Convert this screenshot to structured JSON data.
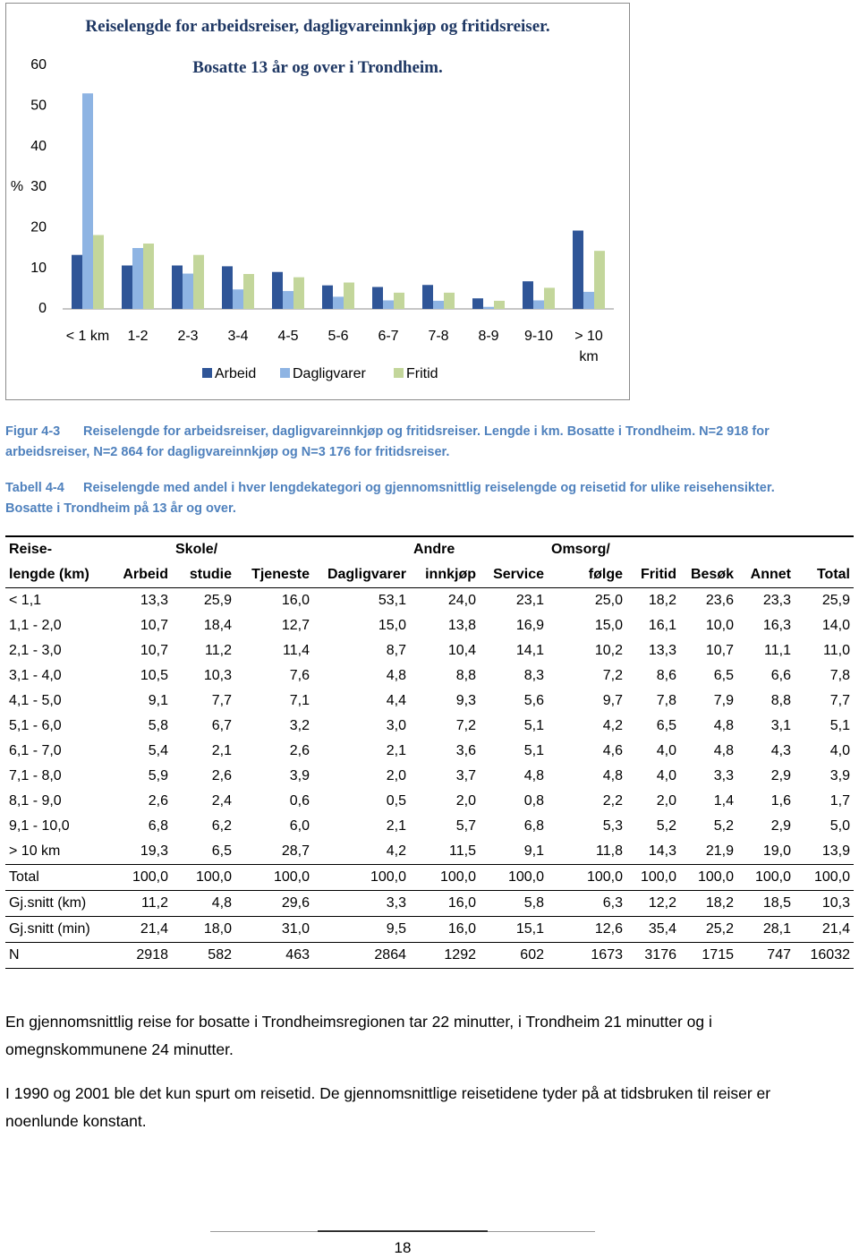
{
  "chart_data": {
    "type": "bar",
    "title": "Reiselengde for arbeidsreiser, dagligvareinnkjøp og fritidsreiser.",
    "subtitle": "Bosatte 13 år og over i Trondheim.",
    "y_label": "%",
    "categories": [
      "< 1 km",
      "1-2",
      "2-3",
      "3-4",
      "4-5",
      "5-6",
      "6-7",
      "7-8",
      "8-9",
      "9-10",
      "> 10 km"
    ],
    "series": [
      {
        "name": "Arbeid",
        "color": "#2f5597",
        "values": [
          13.3,
          10.7,
          10.7,
          10.5,
          9.1,
          5.8,
          5.4,
          5.9,
          2.6,
          6.8,
          19.3
        ]
      },
      {
        "name": "Dagligvarer",
        "color": "#8eb4e3",
        "values": [
          53.1,
          15.0,
          8.7,
          4.8,
          4.4,
          3.0,
          2.1,
          2.0,
          0.5,
          2.1,
          4.2
        ]
      },
      {
        "name": "Fritid",
        "color": "#c3d69b",
        "values": [
          18.2,
          16.1,
          13.3,
          8.6,
          7.8,
          6.5,
          4.0,
          4.0,
          2.0,
          5.2,
          14.3
        ]
      }
    ],
    "ylim": [
      0,
      60
    ],
    "yticks": [
      0,
      10,
      20,
      30,
      40,
      50,
      60
    ],
    "grid": false,
    "legend": "bottom"
  },
  "figure_caption": {
    "label": "Figur 4-3",
    "text": "Reiselengde for arbeidsreiser, dagligvareinnkjøp og fritidsreiser. Lengde i km. Bosatte i Trondheim. N=2 918 for arbeidsreiser, N=2 864 for dagligvareinnkjøp og N=3 176 for fritidsreiser."
  },
  "table_caption": {
    "label": "Tabell 4-4",
    "text": "Reiselengde med andel i hver lengdekategori og gjennomsnittlig reiselengde og reisetid for ulike reisehensikter. Bosatte i Trondheim på 13 år og over."
  },
  "table": {
    "columns": [
      {
        "top": "Reise-",
        "label": "lengde (km)"
      },
      {
        "label": "Arbeid"
      },
      {
        "top": "Skole/",
        "label": "studie"
      },
      {
        "label": "Tjeneste"
      },
      {
        "label": "Dagligvarer"
      },
      {
        "top": "Andre",
        "label": "innkjøp"
      },
      {
        "label": "Service"
      },
      {
        "top": "Omsorg/",
        "label": "følge"
      },
      {
        "label": "Fritid"
      },
      {
        "label": "Besøk"
      },
      {
        "label": "Annet"
      },
      {
        "label": "Total"
      }
    ],
    "rows": [
      [
        "< 1,1",
        "13,3",
        "25,9",
        "16,0",
        "53,1",
        "24,0",
        "23,1",
        "25,0",
        "18,2",
        "23,6",
        "23,3",
        "25,9"
      ],
      [
        "1,1 - 2,0",
        "10,7",
        "18,4",
        "12,7",
        "15,0",
        "13,8",
        "16,9",
        "15,0",
        "16,1",
        "10,0",
        "16,3",
        "14,0"
      ],
      [
        "2,1 - 3,0",
        "10,7",
        "11,2",
        "11,4",
        "8,7",
        "10,4",
        "14,1",
        "10,2",
        "13,3",
        "10,7",
        "11,1",
        "11,0"
      ],
      [
        "3,1 - 4,0",
        "10,5",
        "10,3",
        "7,6",
        "4,8",
        "8,8",
        "8,3",
        "7,2",
        "8,6",
        "6,5",
        "6,6",
        "7,8"
      ],
      [
        "4,1 - 5,0",
        "9,1",
        "7,7",
        "7,1",
        "4,4",
        "9,3",
        "5,6",
        "9,7",
        "7,8",
        "7,9",
        "8,8",
        "7,7"
      ],
      [
        "5,1 - 6,0",
        "5,8",
        "6,7",
        "3,2",
        "3,0",
        "7,2",
        "5,1",
        "4,2",
        "6,5",
        "4,8",
        "3,1",
        "5,1"
      ],
      [
        "6,1 - 7,0",
        "5,4",
        "2,1",
        "2,6",
        "2,1",
        "3,6",
        "5,1",
        "4,6",
        "4,0",
        "4,8",
        "4,3",
        "4,0"
      ],
      [
        "7,1 - 8,0",
        "5,9",
        "2,6",
        "3,9",
        "2,0",
        "3,7",
        "4,8",
        "4,8",
        "4,0",
        "3,3",
        "2,9",
        "3,9"
      ],
      [
        "8,1 - 9,0",
        "2,6",
        "2,4",
        "0,6",
        "0,5",
        "2,0",
        "0,8",
        "2,2",
        "2,0",
        "1,4",
        "1,6",
        "1,7"
      ],
      [
        "9,1 - 10,0",
        "6,8",
        "6,2",
        "6,0",
        "2,1",
        "5,7",
        "6,8",
        "5,3",
        "5,2",
        "5,2",
        "2,9",
        "5,0"
      ],
      [
        "> 10 km",
        "19,3",
        "6,5",
        "28,7",
        "4,2",
        "11,5",
        "9,1",
        "11,8",
        "14,3",
        "21,9",
        "19,0",
        "13,9"
      ],
      [
        "Total",
        "100,0",
        "100,0",
        "100,0",
        "100,0",
        "100,0",
        "100,0",
        "100,0",
        "100,0",
        "100,0",
        "100,0",
        "100,0"
      ],
      [
        "Gj.snitt (km)",
        "11,2",
        "4,8",
        "29,6",
        "3,3",
        "16,0",
        "5,8",
        "6,3",
        "12,2",
        "18,2",
        "18,5",
        "10,3"
      ],
      [
        "Gj.snitt (min)",
        "21,4",
        "18,0",
        "31,0",
        "9,5",
        "16,0",
        "15,1",
        "12,6",
        "35,4",
        "25,2",
        "28,1",
        "21,4"
      ],
      [
        "N",
        "2918",
        "582",
        "463",
        "2864",
        "1292",
        "602",
        "1673",
        "3176",
        "1715",
        "747",
        "16032"
      ]
    ]
  },
  "paragraphs": [
    "En gjennomsnittlig reise for bosatte i Trondheimsregionen tar 22 minutter, i Trondheim 21 minutter og i omegnskommunene 24 minutter.",
    "I 1990 og 2001 ble det kun spurt om reisetid. De gjennomsnittlige reisetidene tyder på at tidsbruken til reiser er noenlunde konstant."
  ],
  "footer": {
    "page_number": "18"
  }
}
